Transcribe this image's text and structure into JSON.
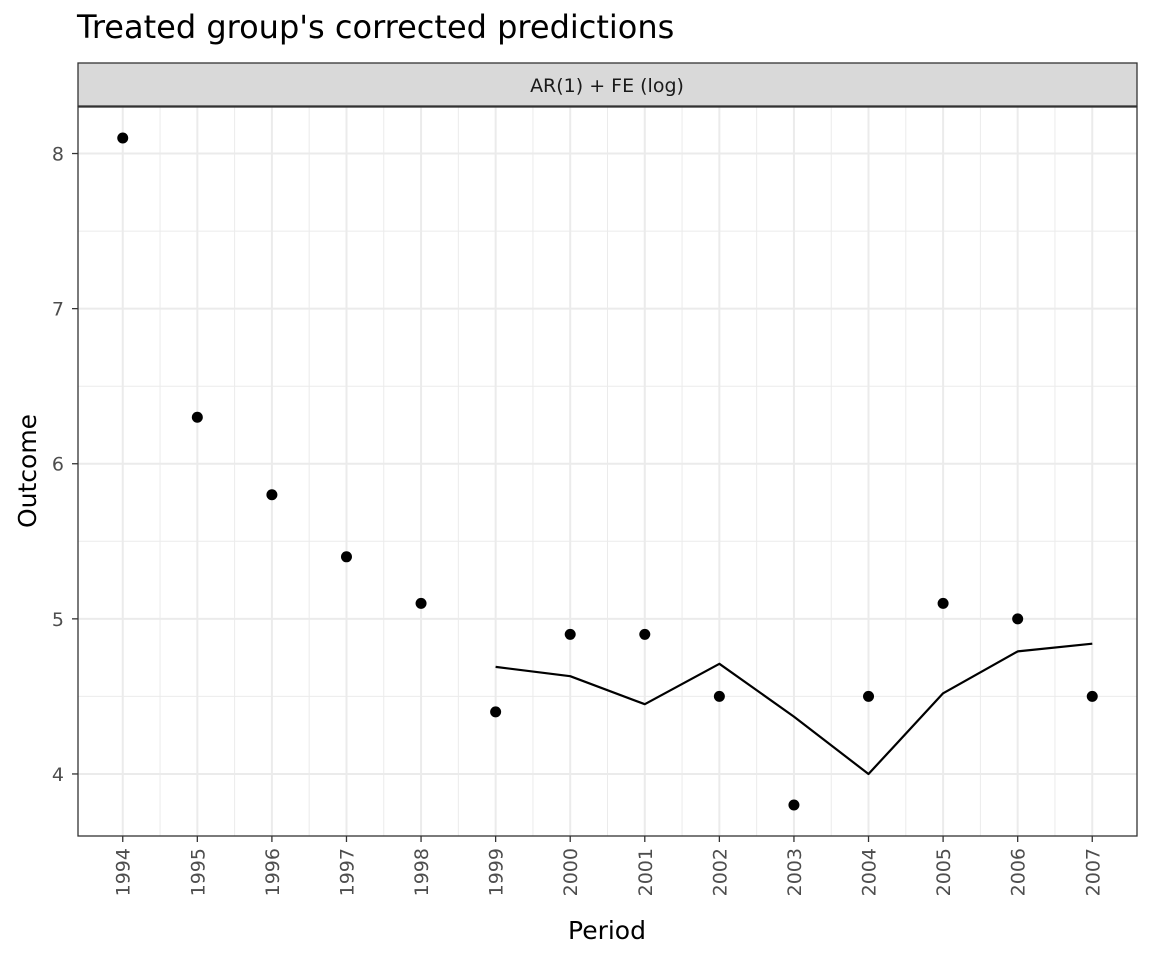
{
  "chart_data": {
    "type": "line",
    "title": "Treated group's corrected predictions",
    "facet_label": "AR(1) + FE (log)",
    "xlabel": "Period",
    "ylabel": "Outcome",
    "x_categories": [
      "1994",
      "1995",
      "1996",
      "1997",
      "1998",
      "1999",
      "2000",
      "2001",
      "2002",
      "2003",
      "2004",
      "2005",
      "2006",
      "2007"
    ],
    "ylim": [
      3.6,
      8.3
    ],
    "y_ticks": [
      4,
      5,
      6,
      7,
      8
    ],
    "grid": true,
    "series": [
      {
        "kind": "points",
        "x": [
          "1994",
          "1995",
          "1996",
          "1997",
          "1998",
          "1999",
          "2000",
          "2001",
          "2002",
          "2003",
          "2004",
          "2005",
          "2006",
          "2007"
        ],
        "y": [
          8.1,
          6.3,
          5.8,
          5.4,
          5.1,
          4.4,
          4.9,
          4.9,
          4.5,
          3.8,
          4.5,
          5.1,
          5.0,
          4.5
        ]
      },
      {
        "kind": "line",
        "x": [
          "1999",
          "2000",
          "2001",
          "2002",
          "2003",
          "2004",
          "2005",
          "2006",
          "2007"
        ],
        "y": [
          4.69,
          4.63,
          4.45,
          4.71,
          4.37,
          4.0,
          4.52,
          4.79,
          4.84
        ]
      }
    ],
    "colors": {
      "points": "#000000",
      "line": "#000000",
      "strip_bg": "#d9d9d9",
      "grid": "#ebebeb"
    }
  }
}
